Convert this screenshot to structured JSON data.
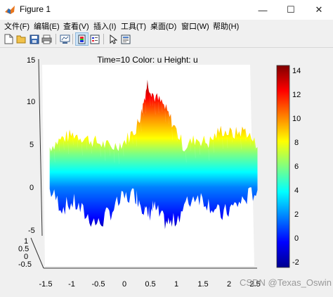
{
  "window": {
    "title": "Figure 1",
    "minimize_glyph": "—",
    "maximize_glyph": "☐",
    "close_glyph": "✕"
  },
  "menu": [
    {
      "label": "文件(F)"
    },
    {
      "label": "编辑(E)"
    },
    {
      "label": "查看(V)"
    },
    {
      "label": "插入(I)"
    },
    {
      "label": "工具(T)"
    },
    {
      "label": "桌面(D)"
    },
    {
      "label": "窗口(W)"
    },
    {
      "label": "帮助(H)"
    }
  ],
  "toolbar": [
    {
      "icon": "new-figure-icon"
    },
    {
      "icon": "open-file-icon"
    },
    {
      "icon": "save-icon"
    },
    {
      "icon": "print-icon"
    },
    {
      "icon": "link-plot-icon"
    },
    {
      "icon": "insert-colorbar-icon"
    },
    {
      "icon": "insert-legend-icon"
    },
    {
      "icon": "pointer-icon"
    },
    {
      "icon": "property-editor-icon"
    }
  ],
  "chart_data": {
    "type": "surface",
    "title": "Time=10   Color: u  Height: u",
    "x_ticks": [
      "-1.5",
      "-1",
      "-0.5",
      "0",
      "0.5",
      "1",
      "1.5",
      "2",
      "2.5"
    ],
    "y_ticks": [
      "1",
      "0.5",
      "0",
      "-0.5"
    ],
    "z_ticks": [
      "15",
      "10",
      "5",
      "0",
      "-5"
    ],
    "xlim": [
      -1.5,
      2.5
    ],
    "ylim": [
      -0.5,
      1
    ],
    "zlim": [
      -5,
      15
    ],
    "colorbar": {
      "ticks": [
        "14",
        "12",
        "10",
        "8",
        "6",
        "4",
        "2",
        "0",
        "-2"
      ],
      "range": [
        -2.6,
        14.5
      ],
      "colormap": "jet"
    },
    "surface_profile": {
      "x": [
        -1.4,
        -1.2,
        -1.0,
        -0.8,
        -0.6,
        -0.4,
        -0.2,
        0.0,
        0.1,
        0.2,
        0.3,
        0.45,
        0.6,
        0.8,
        1.0,
        1.2,
        1.4,
        1.6,
        1.8,
        2.0
      ],
      "top": [
        5,
        6,
        6.5,
        6,
        5.5,
        5,
        5.5,
        7,
        9,
        12.5,
        11,
        10,
        8,
        5,
        6,
        5.5,
        7,
        6.5,
        7,
        5
      ],
      "bottom": [
        0,
        -2,
        -1.5,
        -3,
        -4,
        -2.5,
        -1,
        -0.5,
        -1.5,
        -3,
        -2,
        -3.5,
        -4,
        -2,
        -0.5,
        -1.5,
        -3,
        -2,
        -1,
        0
      ]
    }
  },
  "watermark": "CSDN @Texas_Oswin"
}
